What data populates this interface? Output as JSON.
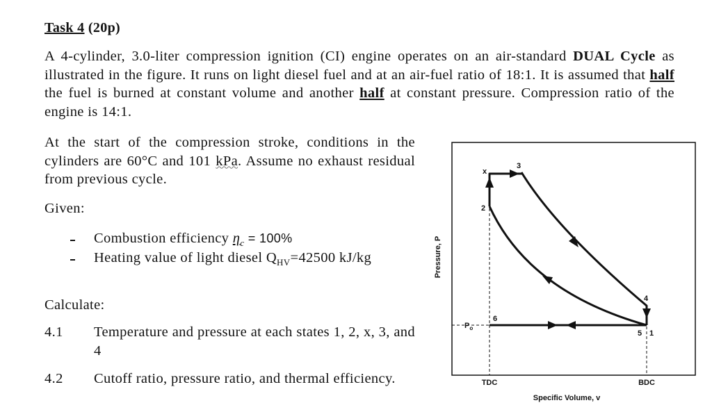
{
  "task": {
    "title": "Task 4",
    "points": "(20p)"
  },
  "intro": [
    "A 4-cylinder, 3.0-liter compression ignition (CI) engine operates on an air-standard ",
    "DUAL Cycle",
    " as illustrated in the figure. It runs on light diesel fuel and at an air-fuel ratio of 18:1. It is assumed that ",
    "half",
    " the fuel is burned at constant volume and another ",
    "half",
    " at constant pressure. Compression ratio of the engine is 14:1."
  ],
  "conditions": [
    "At the start of the compression stroke, conditions in the cylinders are 60°C and 101 ",
    "kPa",
    ". Assume no exhaust residual from previous cycle."
  ],
  "given": {
    "label": "Given:",
    "items": [
      [
        "Combustion efficiency ",
        "η",
        "c",
        " = 100%"
      ],
      [
        "Heating value of light diesel Q",
        "HV",
        "=42500 kJ/kg"
      ]
    ]
  },
  "calculate": {
    "label": "Calculate:",
    "items": [
      {
        "number": "4.1",
        "text": "Temperature and pressure at each states 1, 2, x, 3, and 4"
      },
      {
        "number": "4.2",
        "text": "Cutoff ratio, pressure ratio, and thermal efficiency."
      }
    ]
  },
  "figure": {
    "y_label": "Pressure, P",
    "x_label": "Specific Volume, v",
    "tdc": "TDC",
    "bdc": "BDC",
    "points": {
      "x": "x",
      "p3": "3",
      "p2": "2",
      "p4": "4",
      "p6": "6",
      "p5": "5",
      "p1": "1"
    },
    "po": "P",
    "po_sub": "o"
  }
}
